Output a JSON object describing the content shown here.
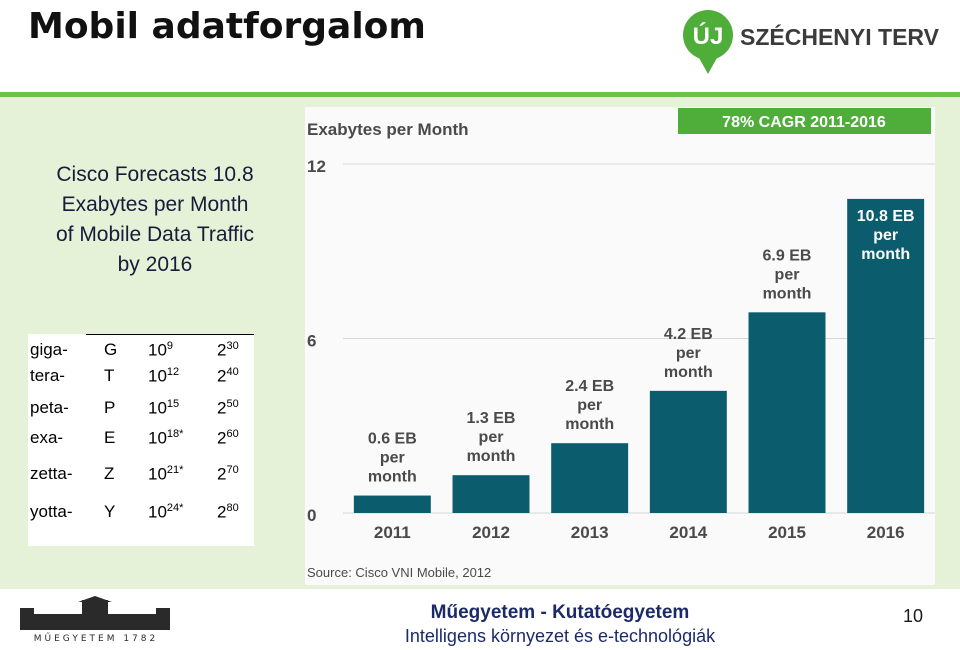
{
  "slide": {
    "title": "Mobil adatforgalom",
    "caption_lines": [
      "Cisco Forecasts 10.8",
      "Exabytes per Month",
      "of Mobile Data Traffic",
      "by 2016"
    ],
    "page_number": "10"
  },
  "logo": {
    "badge": "ÚJ",
    "text": "SZÉCHENYI TERV",
    "color": "#4fae3a"
  },
  "prefix_table": [
    {
      "prefix": "giga-",
      "symbol": "G",
      "dec_base": "10",
      "dec_exp": "9",
      "star": "",
      "bin_base": "2",
      "bin_exp": "30"
    },
    {
      "prefix": "tera-",
      "symbol": "T",
      "dec_base": "10",
      "dec_exp": "12",
      "star": "",
      "bin_base": "2",
      "bin_exp": "40"
    },
    {
      "prefix": "peta-",
      "symbol": "P",
      "dec_base": "10",
      "dec_exp": "15",
      "star": "",
      "bin_base": "2",
      "bin_exp": "50"
    },
    {
      "prefix": "exa-",
      "symbol": "E",
      "dec_base": "10",
      "dec_exp": "18",
      "star": "*",
      "bin_base": "2",
      "bin_exp": "60"
    },
    {
      "prefix": "zetta-",
      "symbol": "Z",
      "dec_base": "10",
      "dec_exp": "21",
      "star": "*",
      "bin_base": "2",
      "bin_exp": "70"
    },
    {
      "prefix": "yotta-",
      "symbol": "Y",
      "dec_base": "10",
      "dec_exp": "24",
      "star": "*",
      "bin_base": "2",
      "bin_exp": "80"
    }
  ],
  "chart_data": {
    "type": "bar",
    "title": "Exabytes per Month",
    "badge": "78% CAGR 2011-2016",
    "categories": [
      "2011",
      "2012",
      "2013",
      "2014",
      "2015",
      "2016"
    ],
    "values": [
      0.6,
      1.3,
      2.4,
      4.2,
      6.9,
      10.8
    ],
    "bar_labels": [
      [
        "0.6 EB",
        "per",
        "month"
      ],
      [
        "1.3 EB",
        "per",
        "month"
      ],
      [
        "2.4 EB",
        "per",
        "month"
      ],
      [
        "4.2 EB",
        "per",
        "month"
      ],
      [
        "6.9 EB",
        "per",
        "month"
      ],
      [
        "10.8 EB",
        "per",
        "month"
      ]
    ],
    "y_ticks": [
      0,
      6,
      12
    ],
    "ylim": [
      0,
      12
    ],
    "grid": true,
    "source": "Source: Cisco VNI Mobile, 2012",
    "bar_color": "#0b5d6e",
    "badge_color": "#4fae3a"
  },
  "footer": {
    "university_logo_text": "MŰEGYETEM 1782",
    "line1": "Műegyetem - Kutatóegyetem",
    "line2": "Intelligens környezet és e-technológiák"
  }
}
